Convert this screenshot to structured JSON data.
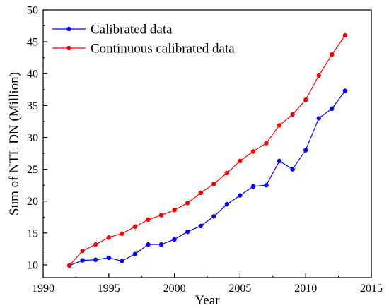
{
  "chart_data": {
    "type": "line",
    "title": "",
    "xlabel": "Year",
    "ylabel": "Sum of NTL DN (Million)",
    "xlim": [
      1990,
      2015
    ],
    "ylim": [
      8,
      50
    ],
    "xticks": [
      1990,
      1995,
      2000,
      2005,
      2010,
      2015
    ],
    "yticks": [
      10,
      15,
      20,
      25,
      30,
      35,
      40,
      45,
      50
    ],
    "grid": false,
    "legend_position": "top-left",
    "x": [
      1992,
      1993,
      1994,
      1995,
      1996,
      1997,
      1998,
      1999,
      2000,
      2001,
      2002,
      2003,
      2004,
      2005,
      2006,
      2007,
      2008,
      2009,
      2010,
      2011,
      2012,
      2013
    ],
    "series": [
      {
        "name": "Calibrated data",
        "color": "#0000ff",
        "values": [
          9.9,
          10.7,
          10.8,
          11.1,
          10.6,
          11.7,
          13.2,
          13.2,
          14.0,
          15.2,
          16.1,
          17.6,
          19.5,
          20.9,
          22.3,
          22.5,
          26.3,
          25.0,
          28.0,
          33.0,
          34.5,
          37.3
        ]
      },
      {
        "name": "Continuous calibrated data",
        "color": "#ff0000",
        "values": [
          9.9,
          12.2,
          13.2,
          14.3,
          14.9,
          16.0,
          17.1,
          17.8,
          18.6,
          19.7,
          21.3,
          22.7,
          24.4,
          26.3,
          27.8,
          29.1,
          31.9,
          33.6,
          35.9,
          39.7,
          43.0,
          46.0
        ]
      }
    ]
  }
}
